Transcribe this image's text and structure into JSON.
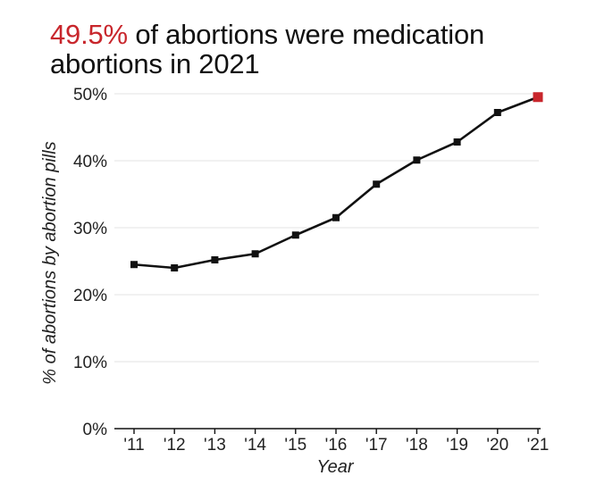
{
  "title": {
    "highlight": "49.5%",
    "rest": " of abortions were medication abortions in 2021"
  },
  "colors": {
    "line": "#111111",
    "highlight": "#c8262c",
    "grid": "#e3e3e3"
  },
  "chart_data": {
    "type": "line",
    "title": "49.5% of abortions were medication abortions in 2021",
    "xlabel": "Year",
    "ylabel": "% of abortions by abortion pills",
    "categories": [
      "'11",
      "'12",
      "'13",
      "'14",
      "'15",
      "'16",
      "'17",
      "'18",
      "'19",
      "'20",
      "'21"
    ],
    "series": [
      {
        "values": [
          24.5,
          24.0,
          25.2,
          26.1,
          28.9,
          31.5,
          36.5,
          40.1,
          42.8,
          47.2,
          49.5
        ]
      }
    ],
    "ylim": [
      0,
      50
    ],
    "yticks": [
      0,
      10,
      20,
      30,
      40,
      50
    ],
    "ytick_labels": [
      "0%",
      "10%",
      "20%",
      "30%",
      "40%",
      "50%"
    ],
    "grid": "horizontal",
    "highlight_last_point": true
  }
}
